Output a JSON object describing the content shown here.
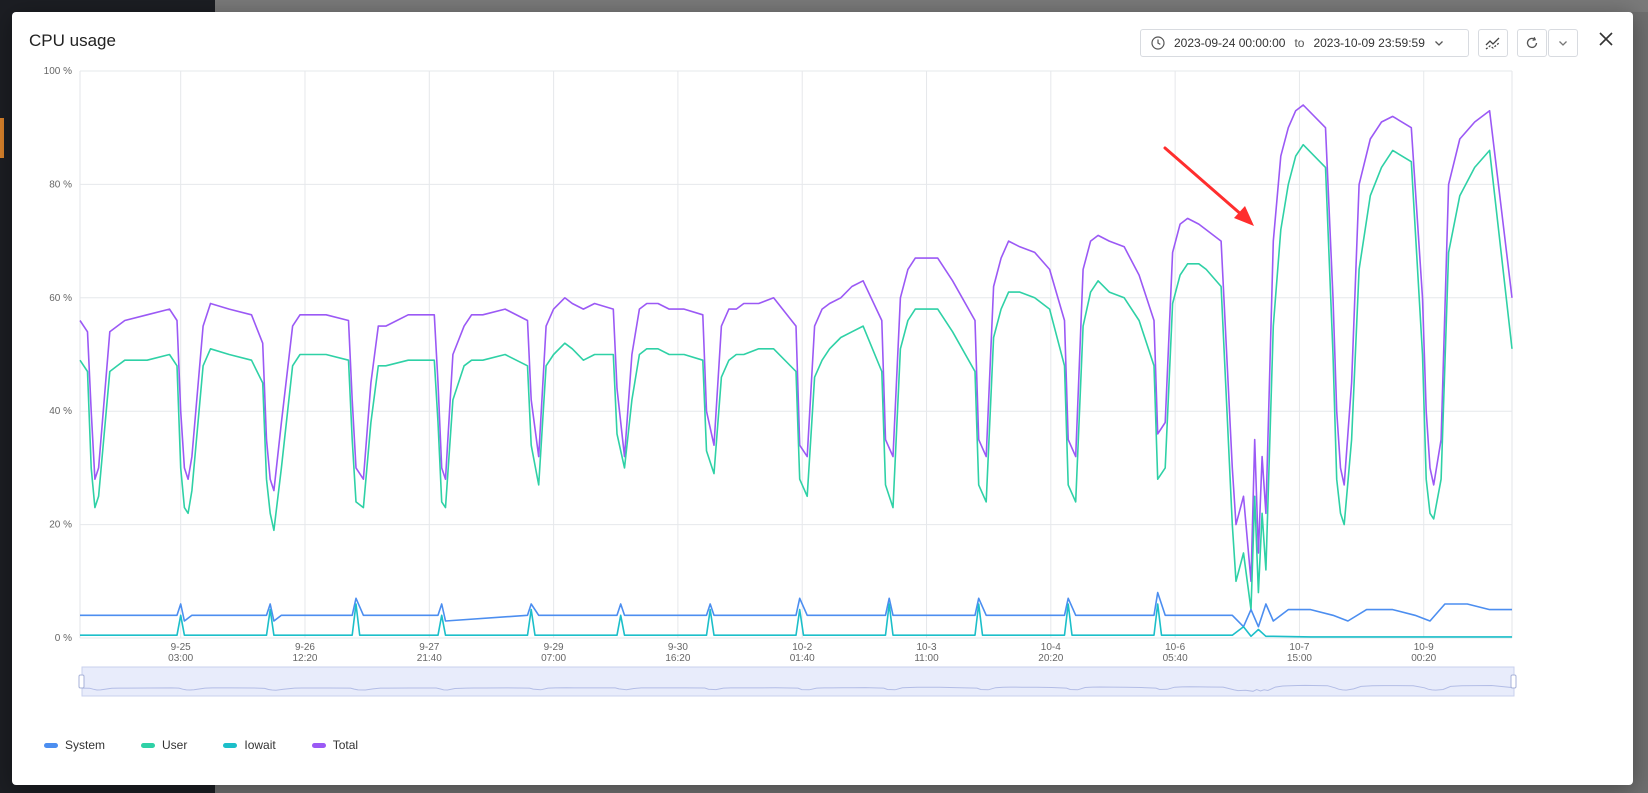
{
  "window": {
    "title": "CPU usage"
  },
  "toolbar": {
    "range_from": "2023-09-24 00:00:00",
    "range_separator": "to",
    "range_to": "2023-10-09 23:59:59"
  },
  "icons": {
    "clock": "clock-icon",
    "dropdown": "chevron-down-icon",
    "compare": "trend-compare-icon",
    "refresh": "refresh-icon",
    "more": "chevron-down-icon",
    "close": "close-icon"
  },
  "colors": {
    "system": "#4c8ef0",
    "user": "#2fd1a6",
    "iowait": "#1cbfc9",
    "total": "#9b59f5",
    "annotation": "#ff2e2e"
  },
  "legend": [
    {
      "key": "system",
      "label": "System"
    },
    {
      "key": "user",
      "label": "User"
    },
    {
      "key": "iowait",
      "label": "Iowait"
    },
    {
      "key": "total",
      "label": "Total"
    }
  ],
  "chart_data": {
    "type": "line",
    "title": "",
    "xlabel": "",
    "ylabel": "",
    "ylim": [
      0,
      100
    ],
    "y_ticks": [
      0,
      20,
      40,
      60,
      80,
      100
    ],
    "y_tick_labels": [
      "0 %",
      "20 %",
      "40 %",
      "60 %",
      "80 %",
      "100 %"
    ],
    "x_range_hours": [
      0,
      384
    ],
    "x_ticks": [
      {
        "hour": 27,
        "line1": "9-25",
        "line2": "03:00"
      },
      {
        "hour": 60.33,
        "line1": "9-26",
        "line2": "12:20"
      },
      {
        "hour": 93.67,
        "line1": "9-27",
        "line2": "21:40"
      },
      {
        "hour": 127,
        "line1": "9-29",
        "line2": "07:00"
      },
      {
        "hour": 160.33,
        "line1": "9-30",
        "line2": "16:20"
      },
      {
        "hour": 193.67,
        "line1": "10-2",
        "line2": "01:40"
      },
      {
        "hour": 227,
        "line1": "10-3",
        "line2": "11:00"
      },
      {
        "hour": 260.33,
        "line1": "10-4",
        "line2": "20:20"
      },
      {
        "hour": 293.67,
        "line1": "10-6",
        "line2": "05:40"
      },
      {
        "hour": 327,
        "line1": "10-7",
        "line2": "15:00"
      },
      {
        "hour": 360.33,
        "line1": "10-9",
        "line2": "00:20"
      }
    ],
    "grid": true,
    "legend_position": "bottom-left",
    "series": [
      {
        "name": "Total",
        "color": "#9b59f5",
        "x": [
          0,
          2,
          3,
          4,
          5,
          8,
          10,
          12,
          18,
          24,
          26,
          27,
          28,
          29,
          30,
          33,
          35,
          40,
          46,
          49,
          50,
          51,
          52,
          54,
          57,
          59,
          66,
          72,
          73,
          74,
          76,
          78,
          80,
          82,
          88,
          95,
          96,
          97,
          98,
          100,
          103,
          105,
          108,
          114,
          120,
          121,
          123,
          125,
          127,
          130,
          132,
          135,
          138,
          143,
          144,
          146,
          148,
          150,
          152,
          155,
          158,
          162,
          167,
          168,
          170,
          172,
          174,
          176,
          178,
          182,
          186,
          192,
          193,
          195,
          197,
          199,
          201,
          204,
          207,
          210,
          215,
          216,
          218,
          220,
          222,
          224,
          227,
          230,
          234,
          240,
          241,
          243,
          245,
          247,
          249,
          252,
          256,
          260,
          264,
          265,
          267,
          269,
          271,
          273,
          276,
          280,
          284,
          288,
          289,
          291,
          293,
          295,
          297,
          300,
          302,
          306,
          309,
          310,
          312,
          314,
          315,
          316,
          317,
          318,
          320,
          322,
          324,
          326,
          328,
          334,
          336,
          337,
          338,
          339,
          341,
          343,
          346,
          349,
          352,
          357,
          360,
          361,
          362,
          363,
          365,
          367,
          370,
          374,
          378,
          384
        ],
        "y": [
          56,
          54,
          40,
          28,
          30,
          54,
          55,
          56,
          57,
          58,
          56,
          40,
          30,
          28,
          32,
          55,
          59,
          58,
          57,
          52,
          35,
          28,
          26,
          38,
          55,
          57,
          57,
          56,
          42,
          30,
          28,
          45,
          55,
          55,
          57,
          57,
          45,
          30,
          28,
          50,
          55,
          57,
          57,
          58,
          56,
          42,
          32,
          55,
          58,
          60,
          59,
          58,
          59,
          58,
          44,
          32,
          50,
          58,
          59,
          59,
          58,
          58,
          57,
          40,
          34,
          55,
          58,
          58,
          59,
          59,
          60,
          55,
          34,
          32,
          55,
          58,
          59,
          60,
          62,
          63,
          56,
          35,
          32,
          60,
          65,
          67,
          67,
          67,
          63,
          56,
          35,
          32,
          62,
          67,
          70,
          69,
          68,
          65,
          56,
          35,
          32,
          65,
          70,
          71,
          70,
          69,
          64,
          56,
          36,
          38,
          68,
          73,
          74,
          73,
          72,
          70,
          30,
          20,
          25,
          10,
          35,
          15,
          32,
          22,
          70,
          85,
          90,
          93,
          94,
          90,
          60,
          40,
          30,
          27,
          45,
          80,
          88,
          91,
          92,
          90,
          60,
          40,
          30,
          27,
          35,
          80,
          88,
          91,
          93,
          60
        ]
      },
      {
        "name": "User",
        "color": "#2fd1a6",
        "x": [
          0,
          2,
          3,
          4,
          5,
          8,
          10,
          12,
          18,
          24,
          26,
          27,
          28,
          29,
          30,
          33,
          35,
          40,
          46,
          49,
          50,
          51,
          52,
          54,
          57,
          59,
          66,
          72,
          73,
          74,
          76,
          78,
          80,
          82,
          88,
          95,
          96,
          97,
          98,
          100,
          103,
          105,
          108,
          114,
          120,
          121,
          123,
          125,
          127,
          130,
          132,
          135,
          138,
          143,
          144,
          146,
          148,
          150,
          152,
          155,
          158,
          162,
          167,
          168,
          170,
          172,
          174,
          176,
          178,
          182,
          186,
          192,
          193,
          195,
          197,
          199,
          201,
          204,
          207,
          210,
          215,
          216,
          218,
          220,
          222,
          224,
          227,
          230,
          234,
          240,
          241,
          243,
          245,
          247,
          249,
          252,
          256,
          260,
          264,
          265,
          267,
          269,
          271,
          273,
          276,
          280,
          284,
          288,
          289,
          291,
          293,
          295,
          297,
          300,
          302,
          306,
          309,
          310,
          312,
          314,
          315,
          316,
          317,
          318,
          320,
          322,
          324,
          326,
          328,
          334,
          336,
          337,
          338,
          339,
          341,
          343,
          346,
          349,
          352,
          357,
          360,
          361,
          362,
          363,
          365,
          367,
          370,
          374,
          378,
          384
        ],
        "y": [
          49,
          47,
          30,
          23,
          25,
          47,
          48,
          49,
          49,
          50,
          48,
          30,
          23,
          22,
          26,
          48,
          51,
          50,
          49,
          45,
          28,
          22,
          19,
          30,
          48,
          50,
          50,
          49,
          35,
          24,
          23,
          38,
          48,
          48,
          49,
          49,
          38,
          24,
          23,
          42,
          48,
          49,
          49,
          50,
          48,
          34,
          27,
          48,
          50,
          52,
          51,
          49,
          50,
          50,
          36,
          30,
          42,
          50,
          51,
          51,
          50,
          50,
          49,
          33,
          29,
          46,
          49,
          50,
          50,
          51,
          51,
          47,
          28,
          25,
          46,
          49,
          51,
          53,
          54,
          55,
          47,
          27,
          23,
          51,
          56,
          58,
          58,
          58,
          54,
          47,
          27,
          24,
          53,
          58,
          61,
          61,
          60,
          58,
          48,
          27,
          24,
          55,
          61,
          63,
          61,
          60,
          56,
          48,
          28,
          30,
          59,
          64,
          66,
          66,
          65,
          62,
          20,
          10,
          15,
          5,
          25,
          8,
          22,
          12,
          55,
          72,
          80,
          85,
          87,
          83,
          50,
          28,
          22,
          20,
          35,
          65,
          78,
          83,
          86,
          84,
          50,
          28,
          22,
          21,
          28,
          68,
          78,
          83,
          86,
          51
        ]
      },
      {
        "name": "System",
        "color": "#4c8ef0",
        "x": [
          0,
          5,
          10,
          26,
          27,
          28,
          30,
          50,
          51,
          52,
          54,
          73,
          74,
          76,
          96,
          97,
          98,
          120,
          121,
          123,
          144,
          145,
          146,
          168,
          169,
          170,
          192,
          193,
          195,
          216,
          217,
          218,
          240,
          241,
          243,
          264,
          265,
          267,
          288,
          289,
          291,
          309,
          312,
          314,
          316,
          318,
          320,
          324,
          330,
          336,
          340,
          345,
          352,
          358,
          362,
          366,
          372,
          378,
          384
        ],
        "y": [
          4,
          4,
          4,
          4,
          6,
          3,
          4,
          4,
          6,
          3,
          4,
          4,
          7,
          4,
          4,
          6,
          3,
          4,
          6,
          4,
          4,
          6,
          4,
          4,
          6,
          4,
          4,
          7,
          4,
          4,
          7,
          4,
          4,
          7,
          4,
          4,
          7,
          4,
          4,
          8,
          4,
          4,
          2,
          5,
          2,
          6,
          3,
          5,
          5,
          4,
          3,
          5,
          5,
          4,
          3,
          6,
          6,
          5,
          5
        ]
      },
      {
        "name": "Iowait",
        "color": "#1cbfc9",
        "x": [
          0,
          3,
          5,
          26,
          27,
          28,
          50,
          51,
          52,
          73,
          74,
          75,
          96,
          97,
          98,
          120,
          121,
          122,
          144,
          145,
          146,
          168,
          169,
          170,
          192,
          193,
          194,
          216,
          217,
          218,
          240,
          241,
          242,
          264,
          265,
          266,
          288,
          289,
          290,
          309,
          312,
          314,
          316,
          318,
          320,
          330,
          384
        ],
        "y": [
          0.5,
          0.5,
          0.5,
          0.5,
          4,
          0.5,
          0.5,
          5,
          0.5,
          0.5,
          6,
          0.5,
          0.5,
          4,
          0.5,
          0.5,
          5,
          0.5,
          0.5,
          4,
          0.5,
          0.5,
          5,
          0.5,
          0.5,
          5,
          0.5,
          0.5,
          6,
          0.5,
          0.5,
          6,
          0.5,
          0.5,
          6,
          0.5,
          0.5,
          6,
          0.5,
          0.5,
          2,
          0.3,
          1.5,
          0.3,
          0.3,
          0.2,
          0.2
        ]
      }
    ]
  }
}
